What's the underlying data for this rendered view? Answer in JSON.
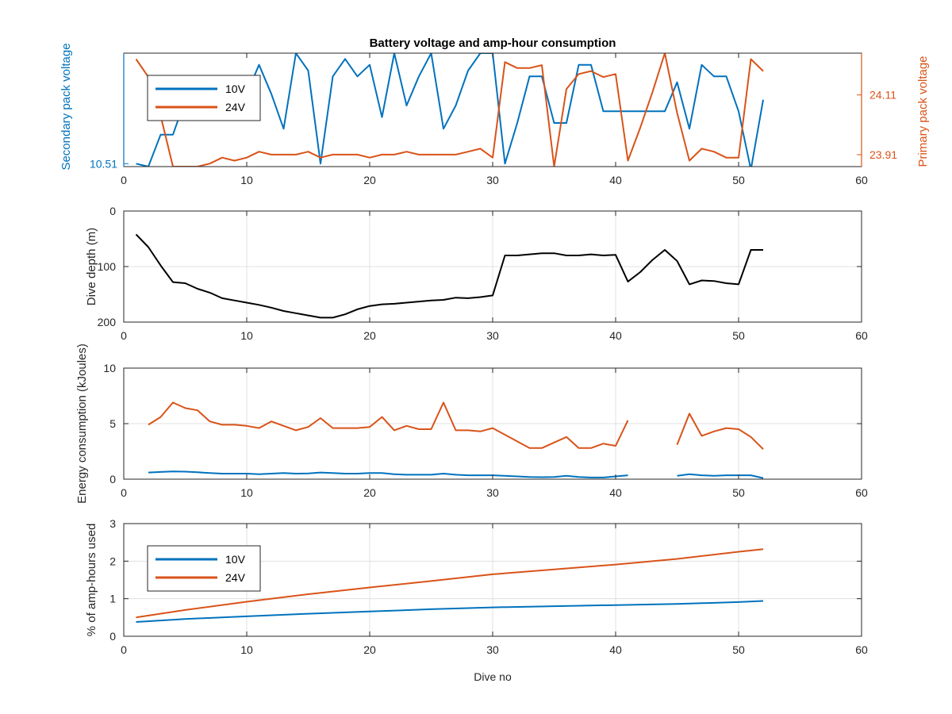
{
  "colors": {
    "blue": "#0072BD",
    "orange": "#D95319",
    "black": "#000000",
    "axis": "#262626",
    "grid": "#E0E0E0"
  },
  "xlabel": "Dive no",
  "chart_data": [
    {
      "type": "line",
      "title": "Battery voltage and amp-hour consumption",
      "xlim": [
        0,
        60
      ],
      "xticks": [
        0,
        10,
        20,
        30,
        40,
        50,
        60
      ],
      "ylabel_left": "Secondary pack voltage",
      "ylabel_right": "Primary pack voltage",
      "yticks_left": [
        "10.51"
      ],
      "yticks_right": [
        "23.91",
        "24.11"
      ],
      "grid": false,
      "legend": {
        "position": "top-left",
        "entries": [
          "10V",
          "24V"
        ]
      },
      "series": [
        {
          "name": "10V",
          "axis": "left",
          "x": [
            1,
            2,
            3,
            4,
            5,
            6,
            7,
            8,
            9,
            10,
            11,
            12,
            13,
            14,
            15,
            16,
            17,
            18,
            19,
            20,
            21,
            22,
            23,
            24,
            25,
            26,
            27,
            28,
            29,
            30,
            31,
            32,
            33,
            34,
            35,
            36,
            37,
            38,
            39,
            40,
            41,
            42,
            43,
            44,
            45,
            46,
            47,
            48,
            49,
            50,
            51,
            52
          ],
          "y": [
            10.51,
            10.505,
            10.56,
            10.56,
            10.62,
            10.64,
            10.64,
            10.64,
            10.6,
            10.63,
            10.68,
            10.63,
            10.57,
            10.7,
            10.67,
            10.51,
            10.66,
            10.69,
            10.66,
            10.68,
            10.59,
            10.7,
            10.61,
            10.66,
            10.7,
            10.57,
            10.61,
            10.67,
            10.7,
            10.7,
            10.51,
            10.58,
            10.66,
            10.66,
            10.58,
            10.58,
            10.68,
            10.68,
            10.6,
            10.6,
            10.6,
            10.6,
            10.6,
            10.6,
            10.65,
            10.57,
            10.68,
            10.66,
            10.66,
            10.6,
            10.5,
            10.62
          ]
        },
        {
          "name": "24V",
          "axis": "right",
          "x": [
            1,
            2,
            3,
            4,
            5,
            6,
            7,
            8,
            9,
            10,
            11,
            12,
            13,
            14,
            15,
            16,
            17,
            18,
            19,
            20,
            21,
            22,
            23,
            24,
            25,
            26,
            27,
            28,
            29,
            30,
            31,
            32,
            33,
            34,
            35,
            36,
            37,
            38,
            39,
            40,
            41,
            42,
            43,
            44,
            45,
            46,
            47,
            48,
            49,
            50,
            51,
            52
          ],
          "y": [
            24.23,
            24.17,
            24.04,
            23.87,
            23.87,
            23.87,
            23.88,
            23.9,
            23.89,
            23.9,
            23.92,
            23.91,
            23.91,
            23.91,
            23.92,
            23.9,
            23.91,
            23.91,
            23.91,
            23.9,
            23.91,
            23.91,
            23.92,
            23.91,
            23.91,
            23.91,
            23.91,
            23.92,
            23.93,
            23.9,
            24.22,
            24.2,
            24.2,
            24.21,
            23.87,
            24.13,
            24.18,
            24.19,
            24.17,
            24.18,
            23.89,
            24.0,
            24.12,
            24.25,
            24.05,
            23.89,
            23.93,
            23.92,
            23.9,
            23.9,
            24.23,
            24.19
          ]
        }
      ]
    },
    {
      "type": "line",
      "xlim": [
        0,
        60
      ],
      "xticks": [
        0,
        10,
        20,
        30,
        40,
        50,
        60
      ],
      "ylabel": "Dive depth (m)",
      "ylim": [
        0,
        200
      ],
      "yreverse": true,
      "yticks": [
        0,
        100,
        200
      ],
      "grid": true,
      "series": [
        {
          "axis": "left",
          "x": [
            1,
            2,
            3,
            4,
            5,
            6,
            7,
            8,
            9,
            10,
            11,
            12,
            13,
            14,
            15,
            16,
            17,
            18,
            19,
            20,
            21,
            22,
            23,
            24,
            25,
            26,
            27,
            28,
            29,
            30,
            31,
            32,
            33,
            34,
            35,
            36,
            37,
            38,
            39,
            40,
            41,
            42,
            43,
            44,
            45,
            46,
            47,
            48,
            49,
            50,
            51,
            52
          ],
          "y": [
            42,
            65,
            98,
            128,
            130,
            140,
            147,
            157,
            161,
            165,
            169,
            174,
            180,
            184,
            188,
            192,
            192,
            186,
            177,
            171,
            168,
            167,
            165,
            163,
            161,
            160,
            156,
            157,
            155,
            152,
            80,
            80,
            78,
            76,
            76,
            80,
            80,
            78,
            80,
            79,
            127,
            110,
            88,
            70,
            90,
            132,
            125,
            126,
            130,
            132,
            70,
            70
          ]
        }
      ]
    },
    {
      "type": "line",
      "xlim": [
        0,
        60
      ],
      "xticks": [
        0,
        10,
        20,
        30,
        40,
        50,
        60
      ],
      "ylabel": "Energy consumption (kJoules)",
      "ylim": [
        0,
        10
      ],
      "yticks": [
        0,
        5,
        10
      ],
      "grid": true,
      "series": [
        {
          "name": "10V",
          "axis": "left",
          "x": [
            2,
            3,
            4,
            5,
            6,
            7,
            8,
            9,
            10,
            11,
            12,
            13,
            14,
            15,
            16,
            17,
            18,
            19,
            20,
            21,
            22,
            23,
            24,
            25,
            26,
            27,
            28,
            29,
            30,
            31,
            32,
            33,
            34,
            35,
            36,
            37,
            38,
            39,
            40,
            41,
            null,
            45,
            46,
            47,
            48,
            49,
            50,
            51,
            52
          ],
          "y": [
            0.6,
            0.65,
            0.7,
            0.68,
            0.62,
            0.55,
            0.5,
            0.5,
            0.5,
            0.45,
            0.5,
            0.55,
            0.5,
            0.52,
            0.6,
            0.55,
            0.5,
            0.5,
            0.55,
            0.55,
            0.45,
            0.4,
            0.4,
            0.4,
            0.5,
            0.4,
            0.35,
            0.35,
            0.35,
            0.3,
            0.25,
            0.2,
            0.18,
            0.2,
            0.3,
            0.2,
            0.15,
            0.15,
            0.25,
            0.35,
            null,
            0.3,
            0.45,
            0.35,
            0.3,
            0.35,
            0.35,
            0.35,
            0.1
          ]
        },
        {
          "name": "24V",
          "axis": "left",
          "x": [
            2,
            3,
            4,
            5,
            6,
            7,
            8,
            9,
            10,
            11,
            12,
            13,
            14,
            15,
            16,
            17,
            18,
            19,
            20,
            21,
            22,
            23,
            24,
            25,
            26,
            27,
            28,
            29,
            30,
            31,
            32,
            33,
            34,
            35,
            36,
            37,
            38,
            39,
            40,
            41,
            null,
            45,
            46,
            47,
            48,
            49,
            50,
            51,
            52
          ],
          "y": [
            4.9,
            5.6,
            6.9,
            6.4,
            6.2,
            5.2,
            4.9,
            4.9,
            4.8,
            4.6,
            5.2,
            4.8,
            4.4,
            4.7,
            5.5,
            4.6,
            4.6,
            4.6,
            4.7,
            5.6,
            4.4,
            4.8,
            4.5,
            4.5,
            6.9,
            4.4,
            4.4,
            4.3,
            4.6,
            4.0,
            3.4,
            2.8,
            2.8,
            3.3,
            3.8,
            2.8,
            2.8,
            3.2,
            3.0,
            5.3,
            null,
            3.1,
            5.9,
            3.9,
            4.3,
            4.6,
            4.5,
            3.8,
            2.7
          ]
        }
      ]
    },
    {
      "type": "line",
      "xlim": [
        0,
        60
      ],
      "xticks": [
        0,
        10,
        20,
        30,
        40,
        50,
        60
      ],
      "xlabel": "Dive no",
      "ylabel": "% of amp-hours used",
      "ylim": [
        0,
        3
      ],
      "yticks": [
        0,
        1,
        2,
        3
      ],
      "grid": true,
      "legend": {
        "position": "bottom-left",
        "entries": [
          "10V",
          "24V"
        ]
      },
      "series": [
        {
          "name": "10V",
          "axis": "left",
          "x": [
            1,
            5,
            10,
            15,
            20,
            25,
            30,
            35,
            40,
            45,
            50,
            52
          ],
          "y": [
            0.38,
            0.46,
            0.53,
            0.6,
            0.66,
            0.72,
            0.77,
            0.8,
            0.83,
            0.86,
            0.91,
            0.94
          ]
        },
        {
          "name": "24V",
          "axis": "left",
          "x": [
            1,
            5,
            10,
            15,
            20,
            25,
            30,
            35,
            40,
            45,
            50,
            52
          ],
          "y": [
            0.5,
            0.7,
            0.92,
            1.12,
            1.3,
            1.47,
            1.65,
            1.78,
            1.91,
            2.06,
            2.25,
            2.32
          ]
        }
      ]
    }
  ]
}
